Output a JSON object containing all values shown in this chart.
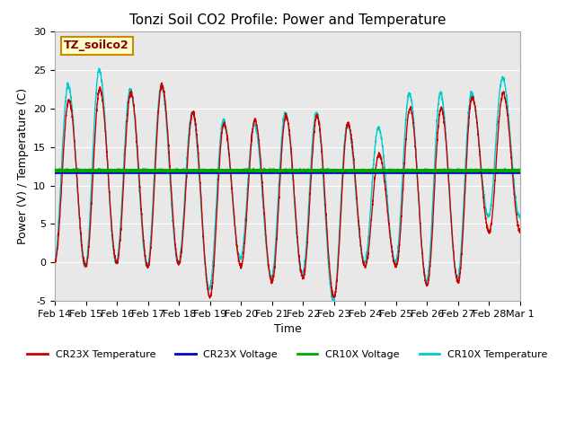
{
  "title": "Tonzi Soil CO2 Profile: Power and Temperature",
  "ylabel": "Power (V) / Temperature (C)",
  "xlabel": "Time",
  "ylim": [
    -5,
    30
  ],
  "x_tick_labels": [
    "Feb 14",
    "Feb 15",
    "Feb 16",
    "Feb 17",
    "Feb 18",
    "Feb 19",
    "Feb 20",
    "Feb 21",
    "Feb 22",
    "Feb 23",
    "Feb 24",
    "Feb 25",
    "Feb 26",
    "Feb 27",
    "Feb 28",
    "Mar 1"
  ],
  "cr23x_voltage": 11.65,
  "cr10x_voltage": 11.95,
  "legend_items": [
    {
      "label": "CR23X Temperature",
      "color": "#cc0000",
      "lw": 1.0
    },
    {
      "label": "CR23X Voltage",
      "color": "#0000cc",
      "lw": 2.0
    },
    {
      "label": "CR10X Voltage",
      "color": "#00aa00",
      "lw": 2.0
    },
    {
      "label": "CR10X Temperature",
      "color": "#00cccc",
      "lw": 1.0
    }
  ],
  "station_label": "TZ_soilco2",
  "station_box_facecolor": "#ffffcc",
  "station_box_edgecolor": "#cc8800",
  "plot_bg_color": "#e8e8e8",
  "yticks": [
    -5,
    0,
    5,
    10,
    15,
    20,
    25,
    30
  ],
  "title_fontsize": 11,
  "axis_fontsize": 9,
  "tick_fontsize": 8,
  "peak_amplitudes_cr23": [
    21,
    22.5,
    22,
    23,
    19.5,
    18,
    18.5,
    19,
    19,
    18,
    14,
    20,
    20,
    21.5,
    22
  ],
  "peak_amplitudes_cr10": [
    23,
    25,
    22.5,
    23,
    19.5,
    18.5,
    18,
    19.5,
    19.5,
    18,
    17.5,
    22,
    22,
    22,
    24
  ],
  "trough_cr23": [
    0,
    -0.5,
    0,
    -0.5,
    -0.2,
    -4.5,
    -0.5,
    -2.5,
    -2,
    -4.5,
    -0.5,
    -0.5,
    -3,
    -2.5,
    4
  ],
  "trough_cr10": [
    0,
    -0.5,
    0,
    -0.5,
    0,
    -3.5,
    0.5,
    -2,
    -1.5,
    -5,
    0,
    0,
    -2.5,
    -2,
    6
  ]
}
